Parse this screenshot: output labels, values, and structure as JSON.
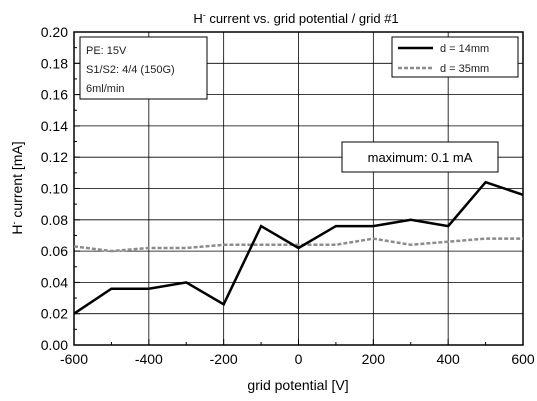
{
  "chart_data": {
    "type": "line",
    "title": "H current vs. grid potential / grid #1",
    "title_superscript": "-",
    "xlabel": "grid potential [V]",
    "ylabel": "H current [mA]",
    "ylabel_superscript": "-",
    "xlim": [
      -600,
      600
    ],
    "ylim": [
      0.0,
      0.2
    ],
    "grid": true,
    "x_ticks": [
      "-600",
      "-400",
      "-200",
      "0",
      "200",
      "400",
      "600"
    ],
    "y_ticks": [
      "0.00",
      "0.02",
      "0.04",
      "0.06",
      "0.08",
      "0.10",
      "0.12",
      "0.14",
      "0.16",
      "0.18",
      "0.20"
    ],
    "legend_position": "top-right",
    "series": [
      {
        "name": "d = 14mm",
        "color": "#000000",
        "style": "solid",
        "x": [
          -600,
          -500,
          -400,
          -300,
          -200,
          -100,
          0,
          100,
          200,
          300,
          400,
          500,
          600
        ],
        "y": [
          0.02,
          0.036,
          0.036,
          0.04,
          0.026,
          0.076,
          0.062,
          0.076,
          0.076,
          0.08,
          0.076,
          0.104,
          0.096
        ]
      },
      {
        "name": "d = 35mm",
        "color": "#8c8c8c",
        "style": "dashed",
        "x": [
          -600,
          -500,
          -400,
          -300,
          -200,
          -100,
          0,
          100,
          200,
          300,
          400,
          500,
          600
        ],
        "y": [
          0.063,
          0.06,
          0.062,
          0.062,
          0.064,
          0.064,
          0.064,
          0.064,
          0.068,
          0.064,
          0.066,
          0.068,
          0.068
        ]
      }
    ],
    "annotations": {
      "parameters": [
        "PE: 15V",
        "S1/S2: 4/4 (150G)",
        "6ml/min"
      ],
      "maximum": "maximum: 0.1 mA"
    }
  }
}
